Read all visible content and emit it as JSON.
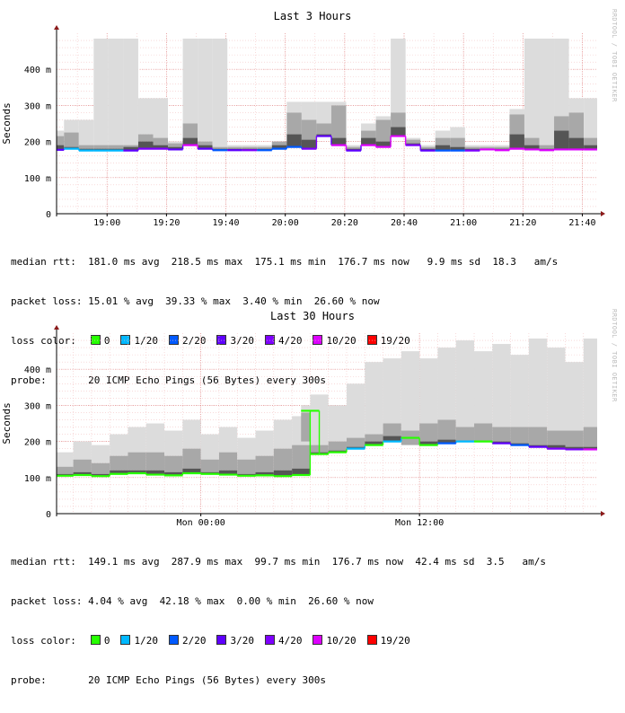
{
  "watermark": "RRDTOOL / TOBI OETIKER",
  "legend_colors": [
    {
      "label": "0",
      "color": "#26ff00"
    },
    {
      "label": "1/20",
      "color": "#00b8ff"
    },
    {
      "label": "2/20",
      "color": "#0059ff"
    },
    {
      "label": "3/20",
      "color": "#5e00ff"
    },
    {
      "label": "4/20",
      "color": "#7e00ff"
    },
    {
      "label": "10/20",
      "color": "#dd00ff"
    },
    {
      "label": "19/20",
      "color": "#ff0000"
    }
  ],
  "chart_data": [
    {
      "type": "area",
      "title": "Last 3 Hours",
      "ylabel": "Seconds",
      "ylim": [
        0,
        0.5
      ],
      "yticks": [
        0,
        0.1,
        0.2,
        0.3,
        0.4
      ],
      "ytick_labels": [
        "0",
        "100 m",
        "200 m",
        "300 m",
        "400 m"
      ],
      "xlim": [
        "18:43",
        "21:45"
      ],
      "xticks": [
        "19:00",
        "19:20",
        "19:40",
        "20:00",
        "20:20",
        "20:40",
        "21:00",
        "21:20",
        "21:40"
      ],
      "grid": true,
      "x": [
        "18:43",
        "18:48",
        "18:53",
        "18:58",
        "19:03",
        "19:08",
        "19:13",
        "19:18",
        "19:23",
        "19:28",
        "19:33",
        "19:38",
        "19:43",
        "19:48",
        "19:53",
        "19:58",
        "20:03",
        "20:08",
        "20:13",
        "20:18",
        "20:23",
        "20:28",
        "20:33",
        "20:38",
        "20:43",
        "20:48",
        "20:53",
        "20:58",
        "21:03",
        "21:08",
        "21:13",
        "21:18",
        "21:23",
        "21:28",
        "21:33",
        "21:38",
        "21:43"
      ],
      "series": [
        {
          "role": "max",
          "values": [
            0.23,
            0.26,
            0.26,
            0.485,
            0.485,
            0.485,
            0.32,
            0.32,
            0.2,
            0.485,
            0.485,
            0.485,
            0.19,
            0.19,
            0.19,
            0.19,
            0.31,
            0.31,
            0.31,
            0.31,
            0.19,
            0.25,
            0.27,
            0.485,
            0.21,
            0.19,
            0.23,
            0.24,
            0.19,
            0.19,
            0.19,
            0.29,
            0.485,
            0.485,
            0.485,
            0.32,
            0.32
          ]
        },
        {
          "role": "p75",
          "values": [
            0.215,
            0.225,
            0.19,
            0.19,
            0.19,
            0.19,
            0.22,
            0.21,
            0.195,
            0.25,
            0.2,
            0.185,
            0.185,
            0.185,
            0.185,
            0.2,
            0.28,
            0.26,
            0.25,
            0.3,
            0.185,
            0.23,
            0.26,
            0.28,
            0.205,
            0.185,
            0.21,
            0.21,
            0.185,
            0.185,
            0.185,
            0.275,
            0.21,
            0.19,
            0.27,
            0.28,
            0.21
          ]
        },
        {
          "role": "p25",
          "values": [
            0.19,
            0.185,
            0.18,
            0.18,
            0.18,
            0.185,
            0.2,
            0.19,
            0.185,
            0.21,
            0.19,
            0.18,
            0.18,
            0.18,
            0.18,
            0.19,
            0.22,
            0.205,
            0.22,
            0.21,
            0.18,
            0.21,
            0.2,
            0.24,
            0.195,
            0.18,
            0.19,
            0.185,
            0.18,
            0.18,
            0.18,
            0.22,
            0.19,
            0.18,
            0.23,
            0.21,
            0.19
          ]
        },
        {
          "role": "median",
          "values": [
            0.177,
            0.18,
            0.175,
            0.175,
            0.175,
            0.175,
            0.18,
            0.18,
            0.178,
            0.19,
            0.18,
            0.176,
            0.176,
            0.176,
            0.176,
            0.18,
            0.185,
            0.18,
            0.215,
            0.19,
            0.175,
            0.19,
            0.185,
            0.215,
            0.19,
            0.175,
            0.175,
            0.175,
            0.175,
            0.178,
            0.176,
            0.18,
            0.178,
            0.176,
            0.178,
            0.178,
            0.178
          ]
        },
        {
          "role": "loss_color",
          "values": [
            "#5e00ff",
            "#00b8ff",
            "#00b8ff",
            "#00b8ff",
            "#00b8ff",
            "#5e00ff",
            "#7e00ff",
            "#7e00ff",
            "#5e00ff",
            "#dd00ff",
            "#5e00ff",
            "#0059ff",
            "#5e00ff",
            "#7e00ff",
            "#0059ff",
            "#0059ff",
            "#0059ff",
            "#7e00ff",
            "#5e00ff",
            "#dd00ff",
            "#5e00ff",
            "#dd00ff",
            "#dd00ff",
            "#dd00ff",
            "#7e00ff",
            "#5e00ff",
            "#0059ff",
            "#0059ff",
            "#7e00ff",
            "#dd00ff",
            "#dd00ff",
            "#dd00ff",
            "#dd00ff",
            "#dd00ff",
            "#dd00ff",
            "#dd00ff",
            "#dd00ff"
          ]
        }
      ]
    },
    {
      "type": "area",
      "title": "Last 30 Hours",
      "ylabel": "Seconds",
      "ylim": [
        0,
        0.5
      ],
      "yticks": [
        0,
        0.1,
        0.2,
        0.3,
        0.4
      ],
      "ytick_labels": [
        "0",
        "100 m",
        "200 m",
        "300 m",
        "400 m"
      ],
      "xlim": [
        "Sun 16:05",
        "Mon 21:45"
      ],
      "xticks": [
        "Mon 00:00",
        "Mon 12:00"
      ],
      "grid": true,
      "x": [
        "Sun 16:30",
        "Sun 17:30",
        "Sun 18:30",
        "Sun 19:30",
        "Sun 20:30",
        "Sun 21:30",
        "Sun 22:30",
        "Sun 23:30",
        "Mon 00:30",
        "Mon 01:30",
        "Mon 02:30",
        "Mon 03:30",
        "Mon 04:30",
        "Mon 05:30",
        "Mon 06:00",
        "Mon 06:30",
        "Mon 07:30",
        "Mon 08:30",
        "Mon 09:30",
        "Mon 10:30",
        "Mon 11:30",
        "Mon 12:30",
        "Mon 13:30",
        "Mon 14:30",
        "Mon 15:30",
        "Mon 16:30",
        "Mon 17:30",
        "Mon 18:30",
        "Mon 19:30",
        "Mon 20:30",
        "Mon 21:30"
      ],
      "series": [
        {
          "role": "max",
          "values": [
            0.17,
            0.2,
            0.19,
            0.22,
            0.24,
            0.25,
            0.23,
            0.26,
            0.22,
            0.24,
            0.21,
            0.23,
            0.26,
            0.27,
            0.3,
            0.33,
            0.3,
            0.36,
            0.42,
            0.43,
            0.45,
            0.43,
            0.46,
            0.48,
            0.45,
            0.47,
            0.44,
            0.485,
            0.46,
            0.42,
            0.485
          ]
        },
        {
          "role": "p75",
          "values": [
            0.13,
            0.15,
            0.14,
            0.16,
            0.17,
            0.17,
            0.16,
            0.18,
            0.15,
            0.17,
            0.15,
            0.16,
            0.18,
            0.19,
            0.28,
            0.19,
            0.2,
            0.21,
            0.22,
            0.25,
            0.23,
            0.25,
            0.26,
            0.24,
            0.25,
            0.24,
            0.24,
            0.24,
            0.23,
            0.23,
            0.24
          ]
        },
        {
          "role": "p25",
          "values": [
            0.11,
            0.115,
            0.11,
            0.12,
            0.12,
            0.12,
            0.115,
            0.125,
            0.115,
            0.12,
            0.11,
            0.115,
            0.12,
            0.125,
            0.2,
            0.17,
            0.175,
            0.185,
            0.2,
            0.215,
            0.19,
            0.2,
            0.205,
            0.2,
            0.2,
            0.2,
            0.195,
            0.19,
            0.19,
            0.185,
            0.185
          ]
        },
        {
          "role": "median",
          "values": [
            0.105,
            0.107,
            0.104,
            0.11,
            0.112,
            0.108,
            0.106,
            0.112,
            0.11,
            0.108,
            0.105,
            0.106,
            0.104,
            0.107,
            0.285,
            0.165,
            0.17,
            0.18,
            0.19,
            0.2,
            0.21,
            0.19,
            0.195,
            0.2,
            0.2,
            0.195,
            0.19,
            0.185,
            0.18,
            0.178,
            0.178
          ]
        },
        {
          "role": "loss_color",
          "values": [
            "#26ff00",
            "#26ff00",
            "#26ff00",
            "#26ff00",
            "#26ff00",
            "#26ff00",
            "#26ff00",
            "#26ff00",
            "#26ff00",
            "#26ff00",
            "#26ff00",
            "#26ff00",
            "#26ff00",
            "#26ff00",
            "#26ff00",
            "#26ff00",
            "#26ff00",
            "#00b8ff",
            "#26ff00",
            "#00b8ff",
            "#26ff00",
            "#26ff00",
            "#0059ff",
            "#00b8ff",
            "#26ff00",
            "#5e00ff",
            "#0059ff",
            "#5e00ff",
            "#7e00ff",
            "#7e00ff",
            "#dd00ff"
          ]
        }
      ]
    }
  ],
  "stats": [
    {
      "median_rtt": "median rtt:  181.0 ms avg  218.5 ms max  175.1 ms min  176.7 ms now   9.9 ms sd  18.3   am/s",
      "packet_loss": "packet loss: 15.01 % avg  39.33 % max  3.40 % min  26.60 % now",
      "loss_color": "loss color:",
      "probe": "probe:       20 ICMP Echo Pings (56 Bytes) every 300s"
    },
    {
      "median_rtt": "median rtt:  149.1 ms avg  287.9 ms max  99.7 ms min  176.7 ms now  42.4 ms sd  3.5   am/s",
      "packet_loss": "packet loss: 4.04 % avg  42.18 % max  0.00 % min  26.60 % now",
      "loss_color": "loss color:",
      "probe": "probe:       20 ICMP Echo Pings (56 Bytes) every 300s"
    }
  ]
}
